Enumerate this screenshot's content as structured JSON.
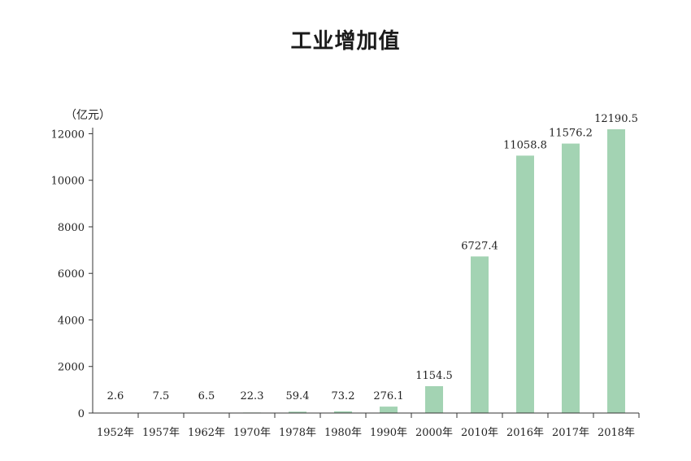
{
  "chart_data": {
    "type": "bar",
    "title": "工业增加值",
    "unit": "（亿元）",
    "categories": [
      "1952年",
      "1957年",
      "1962年",
      "1970年",
      "1978年",
      "1980年",
      "1990年",
      "2000年",
      "2010年",
      "2016年",
      "2017年",
      "2018年"
    ],
    "values": [
      2.6,
      7.5,
      6.5,
      22.3,
      59.4,
      73.2,
      276.1,
      1154.5,
      6727.4,
      11058.8,
      11576.2,
      12190.5
    ],
    "value_labels": [
      "2.6",
      "7.5",
      "6.5",
      "22.3",
      "59.4",
      "73.2",
      "276.1",
      "1154.5",
      "6727.4",
      "11058.8",
      "11576.2",
      "12190.5"
    ],
    "yticks": [
      0,
      2000,
      4000,
      6000,
      8000,
      10000,
      12000
    ],
    "ylim": [
      0,
      12190.5
    ],
    "bar_color": "#a3d3b3",
    "grid": false
  }
}
